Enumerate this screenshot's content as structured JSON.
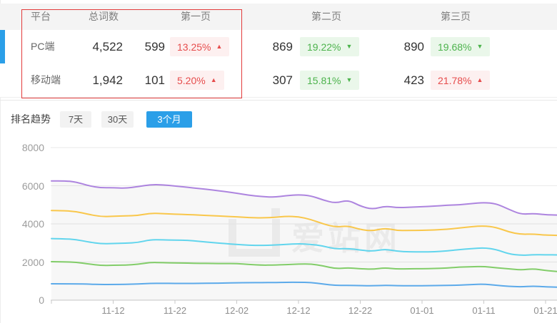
{
  "table": {
    "headers": {
      "platform": "平台",
      "total": "总词数",
      "page1": "第一页",
      "page2": "第二页",
      "page3": "第三页"
    },
    "rows": [
      {
        "platform": "PC端",
        "total": "4,522",
        "page1": {
          "count": "599",
          "pct": "13.25%",
          "dir": "up"
        },
        "page2": {
          "count": "869",
          "pct": "19.22%",
          "dir": "down"
        },
        "page3": {
          "count": "890",
          "pct": "19.68%",
          "dir": "down"
        }
      },
      {
        "platform": "移动端",
        "total": "1,942",
        "page1": {
          "count": "101",
          "pct": "5.20%",
          "dir": "up"
        },
        "page2": {
          "count": "307",
          "pct": "15.81%",
          "dir": "down"
        },
        "page3": {
          "count": "423",
          "pct": "21.78%",
          "dir": "up"
        }
      }
    ]
  },
  "trend_controls": {
    "label": "排名趋势",
    "tabs": [
      {
        "label": "7天",
        "active": false
      },
      {
        "label": "30天",
        "active": false
      },
      {
        "label": "3个月",
        "active": true
      }
    ]
  },
  "watermark_text": "爱站网",
  "colors": {
    "accent_blue": "#2b9fe8",
    "up_red": "#e64c4c",
    "up_red_bg": "#fdf0f0",
    "down_green": "#4cb34c",
    "down_green_bg": "#eaf7ea",
    "annotation_red": "#e23b3b"
  },
  "chart_data": {
    "type": "line",
    "title": "",
    "xlabel": "",
    "ylabel": "",
    "ylim": [
      0,
      8000
    ],
    "yticks": [
      0,
      2000,
      4000,
      6000,
      8000
    ],
    "xtick_labels": [
      "11-12",
      "11-22",
      "12-02",
      "12-12",
      "12-22",
      "01-01",
      "01-11",
      "01-21"
    ],
    "x_start": "11-02",
    "x_interval_days": 2,
    "grid": true,
    "legend": "none",
    "series": [
      {
        "name": "purple",
        "color": "#a679dc",
        "values": [
          6250,
          6260,
          6200,
          6000,
          5890,
          5900,
          5870,
          5950,
          6060,
          6050,
          5990,
          5920,
          5850,
          5780,
          5700,
          5610,
          5500,
          5430,
          5400,
          5480,
          5530,
          5480,
          5250,
          5080,
          5260,
          4930,
          4760,
          4940,
          4850,
          4870,
          4900,
          4930,
          4980,
          5000,
          5060,
          5120,
          5060,
          4770,
          4500,
          4550,
          4480,
          4460
        ]
      },
      {
        "name": "gold",
        "color": "#f9c23c",
        "values": [
          4700,
          4690,
          4650,
          4500,
          4380,
          4400,
          4420,
          4440,
          4560,
          4540,
          4510,
          4490,
          4460,
          4430,
          4400,
          4370,
          4330,
          4310,
          4340,
          4400,
          4380,
          4230,
          4000,
          3830,
          3900,
          3700,
          3630,
          3780,
          3650,
          3660,
          3660,
          3680,
          3720,
          3780,
          3850,
          3900,
          3820,
          3580,
          3450,
          3470,
          3410,
          3400
        ]
      },
      {
        "name": "cyan",
        "color": "#54d1ec",
        "values": [
          3230,
          3220,
          3180,
          3050,
          2960,
          2970,
          2990,
          3020,
          3170,
          3160,
          3150,
          3140,
          3080,
          3020,
          2970,
          2925,
          2880,
          2870,
          2890,
          2925,
          2960,
          2930,
          2840,
          2680,
          2715,
          2630,
          2560,
          2680,
          2560,
          2530,
          2530,
          2540,
          2580,
          2650,
          2700,
          2750,
          2660,
          2430,
          2350,
          2385,
          2380,
          2375
        ]
      },
      {
        "name": "green",
        "color": "#77c95c",
        "values": [
          2020,
          2010,
          1990,
          1900,
          1820,
          1830,
          1840,
          1880,
          1980,
          1970,
          1950,
          1945,
          1930,
          1925,
          1920,
          1920,
          1870,
          1835,
          1840,
          1870,
          1890,
          1900,
          1800,
          1650,
          1700,
          1650,
          1620,
          1700,
          1630,
          1650,
          1650,
          1660,
          1680,
          1735,
          1750,
          1770,
          1700,
          1650,
          1580,
          1650,
          1560,
          1500
        ]
      },
      {
        "name": "blue",
        "color": "#4ea3e8",
        "values": [
          860,
          858,
          855,
          840,
          820,
          825,
          830,
          850,
          880,
          885,
          880,
          875,
          880,
          890,
          900,
          915,
          920,
          920,
          925,
          935,
          940,
          930,
          845,
          770,
          780,
          760,
          755,
          780,
          760,
          760,
          760,
          765,
          775,
          790,
          820,
          845,
          780,
          725,
          700,
          735,
          700,
          680
        ]
      }
    ]
  }
}
